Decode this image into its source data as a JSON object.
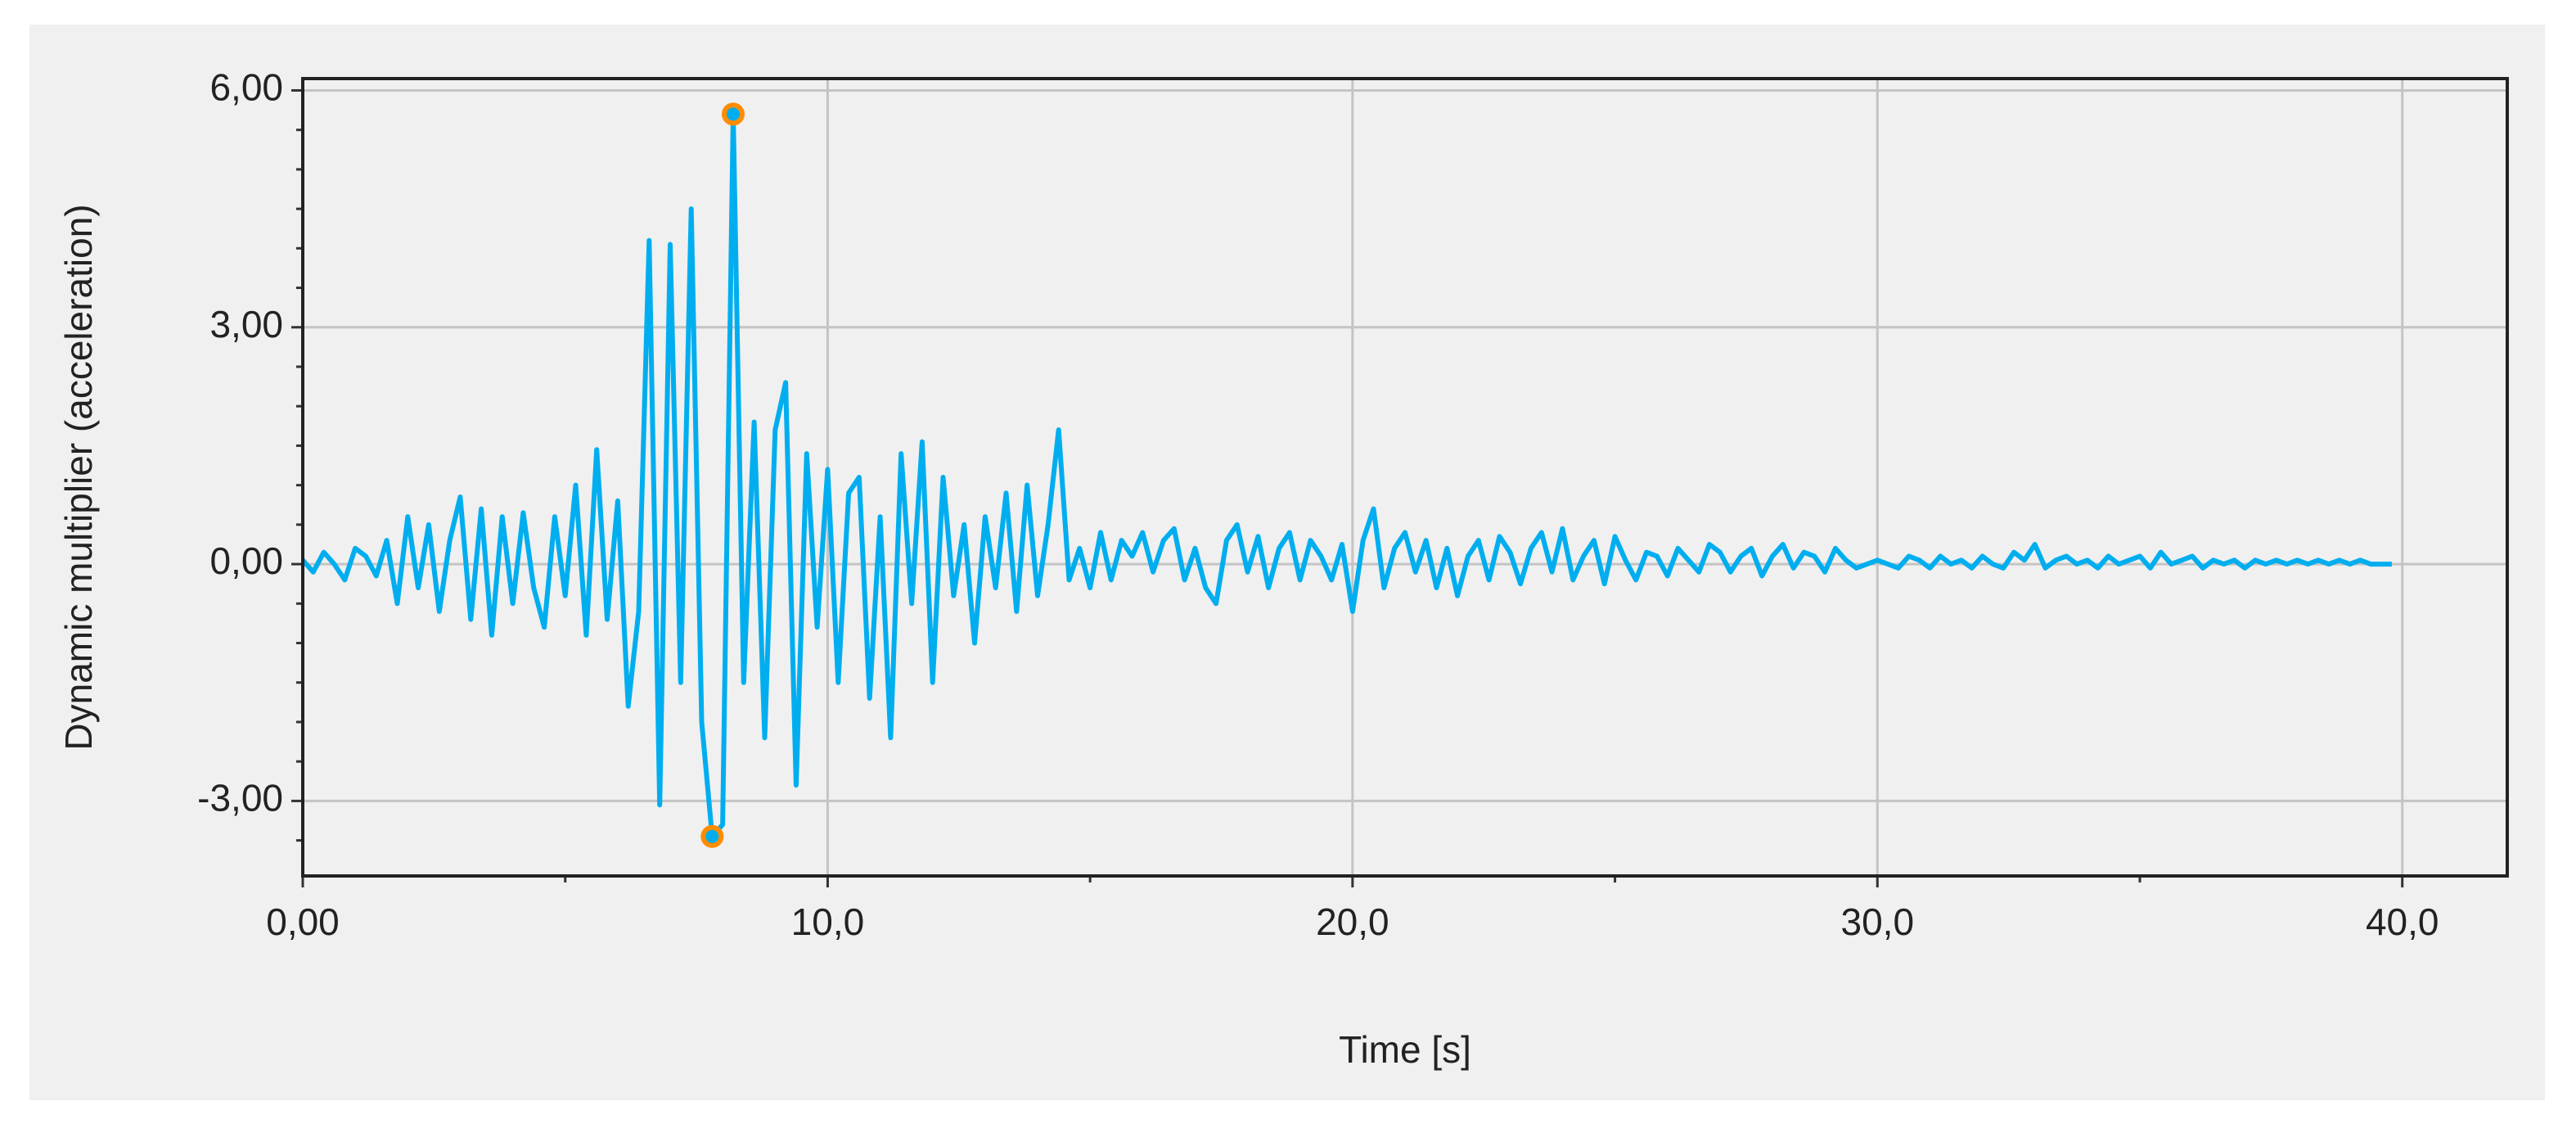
{
  "chart_data": {
    "type": "line",
    "xlabel": "Time [s]",
    "ylabel": "Dynamic multiplier (acceleration)",
    "color": "#00aeef",
    "highlight_color": "#ff8c00",
    "highlight_indices": [
      39,
      41
    ],
    "xlim": [
      0,
      42
    ],
    "ylim": [
      -3.95,
      6.15
    ],
    "xticks": [
      {
        "value": 0,
        "label": "0,00"
      },
      {
        "value": 10,
        "label": "10,0"
      },
      {
        "value": 20,
        "label": "20,0"
      },
      {
        "value": 30,
        "label": "30,0"
      },
      {
        "value": 40,
        "label": "40,0"
      }
    ],
    "xminorticks": [
      5,
      15,
      25,
      35
    ],
    "yticks": [
      {
        "value": -3,
        "label": "-3,00"
      },
      {
        "value": 0,
        "label": "0,00"
      },
      {
        "value": 3,
        "label": "3,00"
      },
      {
        "value": 6,
        "label": "6,00"
      }
    ],
    "yminorticks": [
      -3.5,
      -2.5,
      -2,
      -1.5,
      -1,
      -0.5,
      0.5,
      1,
      1.5,
      2,
      2.5,
      3.5,
      4,
      4.5,
      5,
      5.5
    ],
    "grid": true,
    "x": [
      0,
      0.2,
      0.4,
      0.6,
      0.8,
      1,
      1.2,
      1.4,
      1.6,
      1.8,
      2,
      2.2,
      2.4,
      2.6,
      2.8,
      3,
      3.2,
      3.4,
      3.6,
      3.8,
      4,
      4.2,
      4.4,
      4.6,
      4.8,
      5,
      5.2,
      5.4,
      5.6,
      5.8,
      6,
      6.2,
      6.4,
      6.6,
      6.8,
      7,
      7.2,
      7.4,
      7.6,
      7.8,
      8,
      8.2,
      8.4,
      8.6,
      8.8,
      9,
      9.2,
      9.4,
      9.6,
      9.8,
      10,
      10.2,
      10.4,
      10.6,
      10.8,
      11,
      11.2,
      11.4,
      11.6,
      11.8,
      12,
      12.2,
      12.4,
      12.6,
      12.8,
      13,
      13.2,
      13.4,
      13.6,
      13.8,
      14,
      14.2,
      14.4,
      14.6,
      14.8,
      15,
      15.2,
      15.4,
      15.6,
      15.8,
      16,
      16.2,
      16.4,
      16.6,
      16.8,
      17,
      17.2,
      17.4,
      17.6,
      17.8,
      18,
      18.2,
      18.4,
      18.6,
      18.8,
      19,
      19.2,
      19.4,
      19.6,
      19.8,
      20,
      20.2,
      20.4,
      20.6,
      20.8,
      21,
      21.2,
      21.4,
      21.6,
      21.8,
      22,
      22.2,
      22.4,
      22.6,
      22.8,
      23,
      23.2,
      23.4,
      23.6,
      23.8,
      24,
      24.2,
      24.4,
      24.6,
      24.8,
      25,
      25.2,
      25.4,
      25.6,
      25.8,
      26,
      26.2,
      26.4,
      26.6,
      26.8,
      27,
      27.2,
      27.4,
      27.6,
      27.8,
      28,
      28.2,
      28.4,
      28.6,
      28.8,
      29,
      29.2,
      29.4,
      29.6,
      29.8,
      30,
      30.2,
      30.4,
      30.6,
      30.8,
      31,
      31.2,
      31.4,
      31.6,
      31.8,
      32,
      32.2,
      32.4,
      32.6,
      32.8,
      33,
      33.2,
      33.4,
      33.6,
      33.8,
      34,
      34.2,
      34.4,
      34.6,
      34.8,
      35,
      35.2,
      35.4,
      35.6,
      35.8,
      36,
      36.2,
      36.4,
      36.6,
      36.8,
      37,
      37.2,
      37.4,
      37.6,
      37.8,
      38,
      38.2,
      38.4,
      38.6,
      38.8,
      39,
      39.2,
      39.4,
      39.6,
      39.8
    ],
    "values": [
      0.05,
      -0.1,
      0.15,
      0,
      -0.2,
      0.2,
      0.1,
      -0.15,
      0.3,
      -0.5,
      0.6,
      -0.3,
      0.5,
      -0.6,
      0.3,
      0.85,
      -0.7,
      0.7,
      -0.9,
      0.6,
      -0.5,
      0.65,
      -0.3,
      -0.8,
      0.6,
      -0.4,
      1,
      -0.9,
      1.45,
      -0.7,
      0.8,
      -1.8,
      -0.6,
      4.1,
      -3.05,
      4.05,
      -1.5,
      4.5,
      -2,
      -3.45,
      -3.3,
      5.7,
      -1.5,
      1.8,
      -2.2,
      1.7,
      2.3,
      -2.8,
      1.4,
      -0.8,
      1.2,
      -1.5,
      0.9,
      1.1,
      -1.7,
      0.6,
      -2.2,
      1.4,
      -0.5,
      1.55,
      -1.5,
      1.1,
      -0.4,
      0.5,
      -1,
      0.6,
      -0.3,
      0.9,
      -0.6,
      1,
      -0.4,
      0.5,
      1.7,
      -0.2,
      0.2,
      -0.3,
      0.4,
      -0.2,
      0.3,
      0.1,
      0.4,
      -0.1,
      0.3,
      0.45,
      -0.2,
      0.2,
      -0.3,
      -0.5,
      0.3,
      0.5,
      -0.1,
      0.35,
      -0.3,
      0.2,
      0.4,
      -0.2,
      0.3,
      0.1,
      -0.2,
      0.25,
      -0.6,
      0.3,
      0.7,
      -0.3,
      0.2,
      0.4,
      -0.1,
      0.3,
      -0.3,
      0.2,
      -0.4,
      0.1,
      0.3,
      -0.2,
      0.35,
      0.15,
      -0.25,
      0.2,
      0.4,
      -0.1,
      0.45,
      -0.2,
      0.1,
      0.3,
      -0.25,
      0.35,
      0.05,
      -0.2,
      0.15,
      0.1,
      -0.15,
      0.2,
      0.05,
      -0.1,
      0.25,
      0.15,
      -0.1,
      0.1,
      0.2,
      -0.15,
      0.1,
      0.25,
      -0.05,
      0.15,
      0.1,
      -0.1,
      0.2,
      0.05,
      -0.05,
      0,
      0.05,
      0,
      -0.05,
      0.1,
      0.05,
      -0.05,
      0.1,
      0,
      0.05,
      -0.05,
      0.1,
      0,
      -0.05,
      0.15,
      0.05,
      0.25,
      -0.05,
      0.05,
      0.1,
      0,
      0.05,
      -0.05,
      0.1,
      0,
      0.05,
      0.1,
      -0.05,
      0.15,
      0,
      0.05,
      0.1,
      -0.05,
      0.05,
      0,
      0.05,
      -0.05,
      0.05,
      0,
      0.05,
      0,
      0.05,
      0,
      0.05,
      0,
      0.05,
      0,
      0.05,
      0,
      0,
      0
    ]
  }
}
